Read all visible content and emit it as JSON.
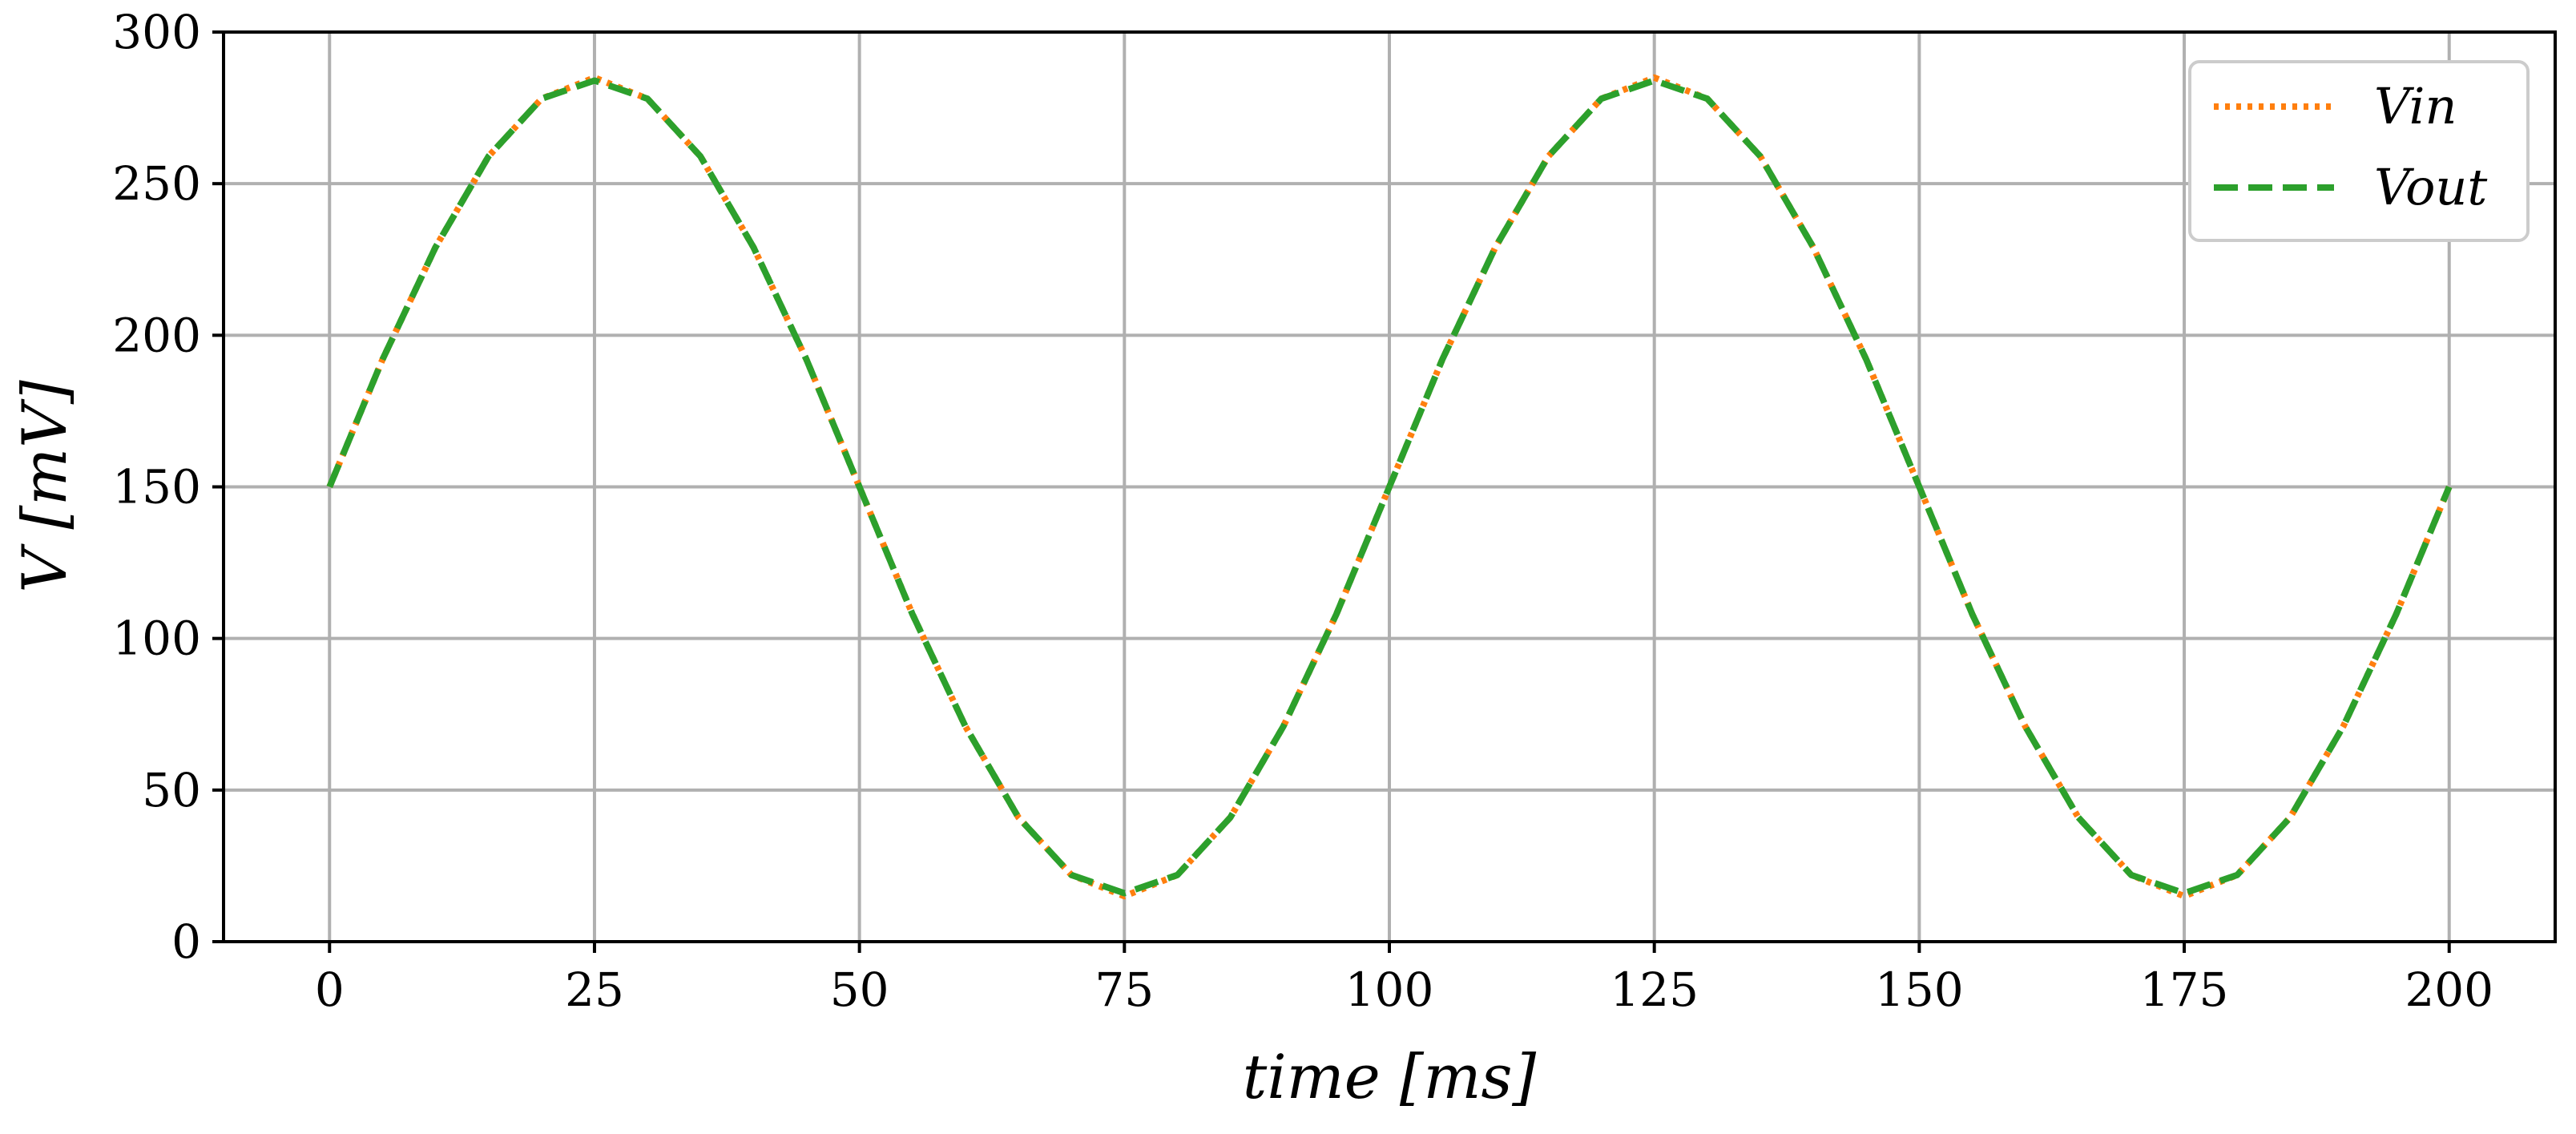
{
  "chart_data": {
    "type": "line",
    "xlabel": "time [ms]",
    "ylabel": "V [mV]",
    "xlim": [
      -10,
      210
    ],
    "ylim": [
      0,
      300
    ],
    "x_ticks": [
      "0",
      "25",
      "50",
      "75",
      "100",
      "125",
      "150",
      "175",
      "200"
    ],
    "y_ticks": [
      "0",
      "50",
      "100",
      "150",
      "200",
      "250",
      "300"
    ],
    "grid": true,
    "legend_position": "top-right",
    "x": [
      0,
      5,
      10,
      15,
      20,
      25,
      30,
      35,
      40,
      45,
      50,
      55,
      60,
      65,
      70,
      75,
      80,
      85,
      90,
      95,
      100,
      105,
      110,
      115,
      120,
      125,
      130,
      135,
      140,
      145,
      150,
      155,
      160,
      165,
      170,
      175,
      180,
      185,
      190,
      195,
      200
    ],
    "series": [
      {
        "name": "Vin",
        "color": "#ff7f0e",
        "line_style": "dotted",
        "values": [
          150,
          192,
          229,
          259,
          278,
          285,
          278,
          259,
          229,
          192,
          150,
          108,
          71,
          41,
          22,
          15,
          22,
          41,
          71,
          108,
          150,
          192,
          229,
          259,
          278,
          285,
          278,
          259,
          229,
          192,
          150,
          108,
          71,
          41,
          22,
          15,
          22,
          41,
          71,
          108,
          150
        ]
      },
      {
        "name": "Vout",
        "color": "#2ca02c",
        "line_style": "dashed",
        "values": [
          150,
          192,
          229,
          259,
          278,
          284,
          278,
          259,
          229,
          192,
          150,
          108,
          71,
          41,
          22,
          16,
          22,
          41,
          71,
          108,
          150,
          192,
          229,
          259,
          278,
          284,
          278,
          259,
          229,
          192,
          150,
          108,
          71,
          41,
          22,
          16,
          22,
          41,
          71,
          108,
          150
        ]
      }
    ]
  },
  "legend": {
    "vin_label": "Vin",
    "vout_label": "Vout"
  }
}
